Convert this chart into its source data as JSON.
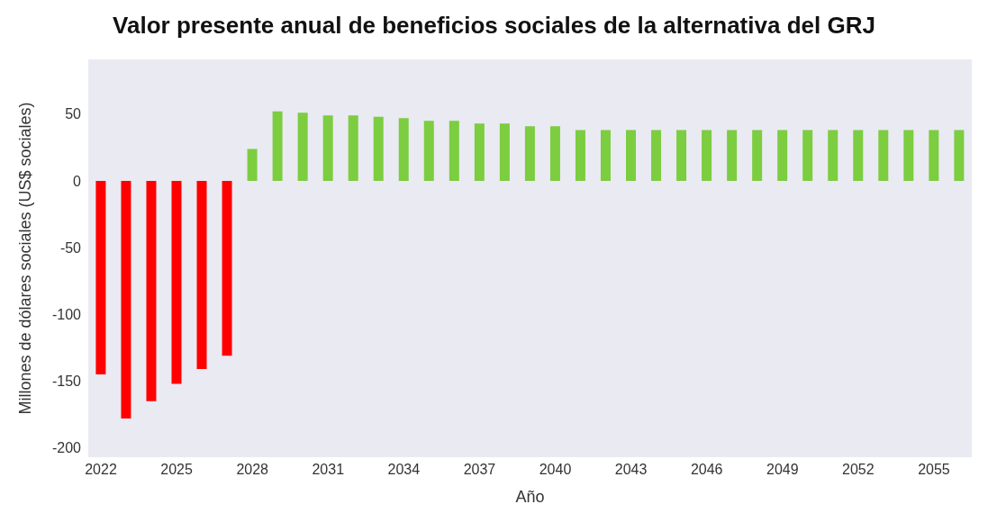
{
  "chart_data": {
    "type": "bar",
    "title": "Valor presente anual de beneficios sociales de la alternativa del GRJ",
    "xlabel": "Año",
    "ylabel": "Millones de dólares sociales (US$ sociales)",
    "categories": [
      "2022",
      null,
      null,
      "2025",
      null,
      null,
      "2028",
      null,
      null,
      "2031",
      null,
      null,
      "2034",
      null,
      null,
      "2037",
      null,
      null,
      "2040",
      null,
      null,
      "2043",
      null,
      null,
      "2046",
      null,
      null,
      "2049",
      null,
      null,
      "2052",
      null,
      null,
      "2055",
      null
    ],
    "values": [
      -145,
      -178,
      -165,
      -152,
      -141,
      -131,
      24,
      52,
      51,
      49,
      49,
      48,
      47,
      45,
      45,
      43,
      43,
      41,
      41,
      38,
      38,
      38,
      38,
      38,
      38,
      38,
      38,
      38,
      38,
      38,
      38,
      38,
      38,
      38,
      38
    ],
    "colors": [
      "#ff0000",
      "#ff0000",
      "#ff0000",
      "#ff0000",
      "#ff0000",
      "#ff0000",
      "#7ccd3f",
      "#7ccd3f",
      "#7ccd3f",
      "#7ccd3f",
      "#7ccd3f",
      "#7ccd3f",
      "#7ccd3f",
      "#7ccd3f",
      "#7ccd3f",
      "#7ccd3f",
      "#7ccd3f",
      "#7ccd3f",
      "#7ccd3f",
      "#7ccd3f",
      "#7ccd3f",
      "#7ccd3f",
      "#7ccd3f",
      "#7ccd3f",
      "#7ccd3f",
      "#7ccd3f",
      "#7ccd3f",
      "#7ccd3f",
      "#7ccd3f",
      "#7ccd3f",
      "#7ccd3f",
      "#7ccd3f",
      "#7ccd3f",
      "#7ccd3f",
      "#7ccd3f"
    ],
    "ylim": [
      -207,
      91
    ],
    "yticks": [
      -200,
      -150,
      -100,
      -50,
      0,
      50
    ]
  }
}
